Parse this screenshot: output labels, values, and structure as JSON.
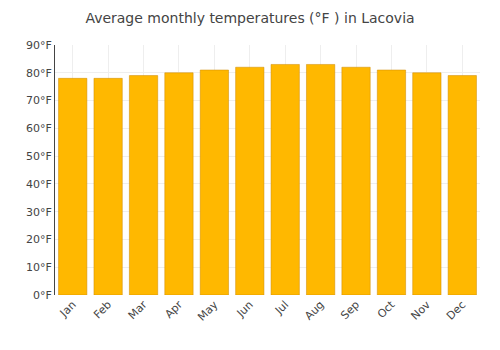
{
  "chart_data": {
    "type": "bar",
    "title": "Average monthly temperatures (°F ) in Lacovia",
    "categories": [
      "Jan",
      "Feb",
      "Mar",
      "Apr",
      "May",
      "Jun",
      "Jul",
      "Aug",
      "Sep",
      "Oct",
      "Nov",
      "Dec"
    ],
    "values": [
      78,
      78,
      79,
      80,
      81,
      82,
      83,
      83,
      82,
      81,
      80,
      79
    ],
    "color": "#FFB800",
    "ylim": [
      0,
      90
    ],
    "yticks": [
      {
        "value": 0,
        "label": "0°F"
      },
      {
        "value": 10,
        "label": "10°F"
      },
      {
        "value": 20,
        "label": "20°F"
      },
      {
        "value": 30,
        "label": "30°F"
      },
      {
        "value": 40,
        "label": "40°F"
      },
      {
        "value": 50,
        "label": "50°F"
      },
      {
        "value": 60,
        "label": "60°F"
      },
      {
        "value": 70,
        "label": "70°F"
      },
      {
        "value": 80,
        "label": "80°F"
      },
      {
        "value": 90,
        "label": "90°F"
      }
    ],
    "grid": true
  }
}
